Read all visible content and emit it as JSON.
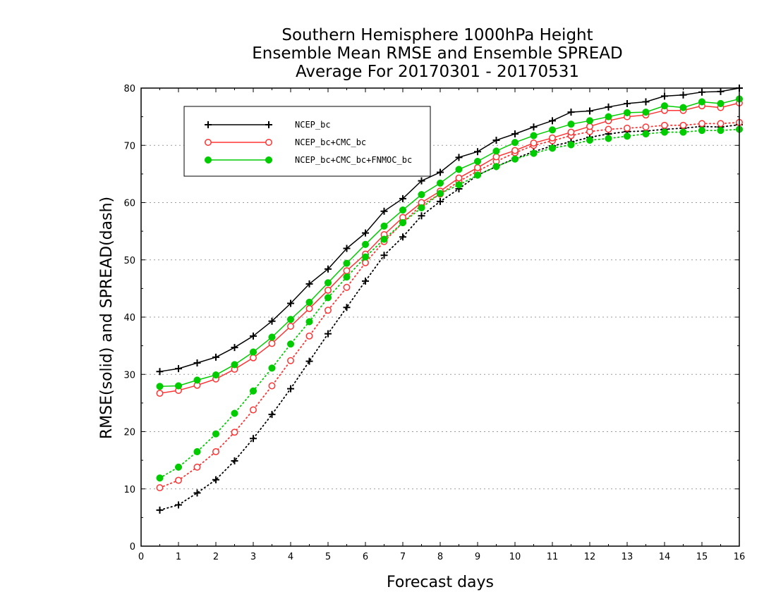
{
  "chart_data": {
    "type": "line",
    "title_lines": [
      "Southern Hemisphere 1000hPa Height",
      "Ensemble Mean RMSE and Ensemble SPREAD",
      "Average For 20170301 - 20170531"
    ],
    "xlabel": "Forecast days",
    "ylabel": "RMSE(solid) and SPREAD(dash)",
    "xlim": [
      0,
      16
    ],
    "ylim": [
      0,
      80
    ],
    "xticks": [
      "0",
      "1",
      "2",
      "3",
      "4",
      "5",
      "6",
      "7",
      "8",
      "9",
      "10",
      "11",
      "12",
      "13",
      "14",
      "15",
      "16"
    ],
    "yticks": [
      "0",
      "10",
      "20",
      "30",
      "40",
      "50",
      "60",
      "70",
      "80"
    ],
    "grid": "horizontal dotted",
    "legend_position": "top-left",
    "x": [
      0.5,
      1,
      1.5,
      2,
      2.5,
      3,
      3.5,
      4,
      4.5,
      5,
      5.5,
      6,
      6.5,
      7,
      7.5,
      8,
      8.5,
      9,
      9.5,
      10,
      10.5,
      11,
      11.5,
      12,
      12.5,
      13,
      13.5,
      14,
      14.5,
      15,
      15.5,
      16
    ],
    "series": [
      {
        "name": "NCEP_bc",
        "color": "#000000",
        "marker": "plus",
        "rmse": [
          30.5,
          31.0,
          32.0,
          33.0,
          34.7,
          36.7,
          39.3,
          42.4,
          45.8,
          48.4,
          52.0,
          54.7,
          58.5,
          60.7,
          63.8,
          65.3,
          67.9,
          68.9,
          70.9,
          72.0,
          73.2,
          74.3,
          75.8,
          76.0,
          76.7,
          77.3,
          77.6,
          78.6,
          78.8,
          79.3,
          79.4,
          80.0
        ],
        "spread": [
          6.3,
          7.2,
          9.3,
          11.6,
          14.9,
          18.8,
          23.0,
          27.5,
          32.3,
          37.1,
          41.7,
          46.3,
          50.8,
          54.0,
          57.7,
          60.2,
          62.4,
          64.8,
          66.3,
          67.7,
          68.9,
          69.9,
          70.6,
          71.4,
          72.0,
          72.4,
          72.5,
          72.8,
          73.0,
          73.3,
          73.2,
          73.6
        ]
      },
      {
        "name": "NCEP_bc+CMC_bc",
        "color": "#ff3333",
        "marker": "open-circle",
        "rmse": [
          26.7,
          27.2,
          28.1,
          29.2,
          30.9,
          32.9,
          35.4,
          38.4,
          41.5,
          44.7,
          48.1,
          51.0,
          54.4,
          57.4,
          60.0,
          62.0,
          64.3,
          66.1,
          68.0,
          69.1,
          70.4,
          71.3,
          72.3,
          73.3,
          74.3,
          75.0,
          75.3,
          76.1,
          76.1,
          76.9,
          76.6,
          77.4
        ],
        "spread": [
          10.2,
          11.5,
          13.8,
          16.5,
          19.9,
          23.8,
          28.0,
          32.4,
          36.7,
          41.2,
          45.2,
          49.5,
          53.2,
          56.5,
          59.6,
          61.5,
          63.7,
          65.5,
          67.2,
          68.7,
          70.0,
          70.8,
          71.7,
          72.4,
          72.8,
          73.0,
          73.2,
          73.5,
          73.5,
          73.8,
          73.8,
          74.0
        ]
      },
      {
        "name": "NCEP_bc+CMC_bc+FNMOC_bc",
        "color": "#00cc00",
        "marker": "filled-circle",
        "rmse": [
          27.9,
          28.0,
          29.0,
          29.9,
          31.7,
          33.9,
          36.5,
          39.6,
          42.6,
          46.0,
          49.4,
          52.7,
          55.9,
          58.7,
          61.4,
          63.4,
          65.8,
          67.2,
          69.0,
          70.5,
          71.7,
          72.7,
          73.7,
          74.3,
          75.0,
          75.7,
          75.8,
          76.9,
          76.6,
          77.6,
          77.3,
          78.1
        ],
        "spread": [
          11.9,
          13.8,
          16.5,
          19.6,
          23.2,
          27.1,
          31.1,
          35.3,
          39.2,
          43.4,
          47.0,
          50.5,
          53.6,
          56.5,
          59.1,
          61.6,
          63.1,
          64.8,
          66.3,
          67.6,
          68.6,
          69.5,
          70.1,
          70.9,
          71.2,
          71.6,
          72.0,
          72.3,
          72.3,
          72.6,
          72.6,
          72.8
        ]
      }
    ]
  }
}
